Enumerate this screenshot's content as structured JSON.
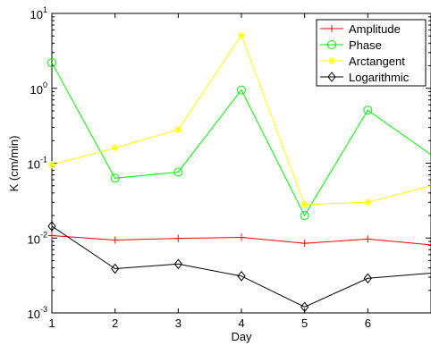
{
  "chart_data": {
    "type": "line",
    "xlabel": "Day",
    "ylabel": "K (cm/min)",
    "xlim": [
      1,
      7
    ],
    "ylim": [
      0.001,
      10
    ],
    "yscale": "log",
    "x_ticks": [
      "1",
      "2",
      "3",
      "4",
      "5",
      "6"
    ],
    "y_tick_exponents": [
      "-3",
      "-2",
      "-1",
      "0",
      "1"
    ],
    "y_tick_base": "10",
    "grid": false,
    "legend": "top-right",
    "x": [
      1,
      2,
      3,
      4,
      5,
      6,
      7
    ],
    "series": [
      {
        "name": "Amplitude",
        "color": "#ff0000",
        "marker": "plus",
        "values": [
          0.0108,
          0.0094,
          0.0099,
          0.0102,
          0.0085,
          0.0097,
          0.0081
        ]
      },
      {
        "name": "Phase",
        "color": "#00ee00",
        "marker": "circle",
        "values": [
          2.2,
          0.063,
          0.076,
          0.95,
          0.02,
          0.51,
          0.13
        ]
      },
      {
        "name": "Arctangent",
        "color": "#ffff00",
        "marker": "star",
        "values": [
          0.095,
          0.16,
          0.28,
          5.1,
          0.028,
          0.03,
          0.05
        ]
      },
      {
        "name": "Logarithmic",
        "color": "#000000",
        "marker": "diamond",
        "values": [
          0.0144,
          0.0039,
          0.0045,
          0.0031,
          0.0012,
          0.0029,
          0.0034
        ]
      }
    ]
  }
}
